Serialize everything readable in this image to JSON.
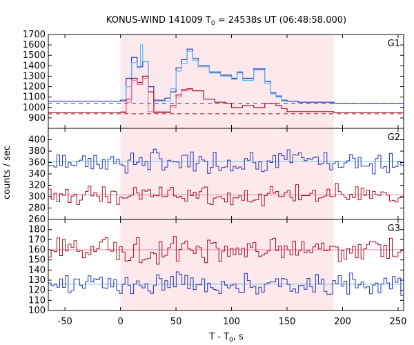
{
  "chart_data": {
    "type": "line",
    "title_main": "KONUS-WIND 141009 T",
    "title_sub": "0",
    "title_rest": " = 24538s UT (06:48:58.000)",
    "xlabel_main": "T - T",
    "xlabel_sub": "0",
    "xlabel_rest": ", s",
    "ylabel": "counts / sec",
    "xlim": [
      -65,
      255
    ],
    "x_ticks": [
      "-50",
      "0",
      "50",
      "100",
      "150",
      "200",
      "250"
    ],
    "x_tick_values": [
      -50,
      0,
      50,
      100,
      150,
      200,
      250
    ],
    "shaded_interval": [
      0,
      192
    ],
    "colors": {
      "dark_blue": "#2233bb",
      "light_blue": "#55c0f0",
      "dark_red": "#a01020",
      "pink": "#f070b0",
      "cyan_bg": "#6fc8d8",
      "pink_bg": "#f07ab0",
      "shade": "#fde8ec"
    },
    "panels": [
      {
        "label": "G1",
        "ylim": [
          800,
          1700
        ],
        "y_ticks": [
          "900",
          "1000",
          "1100",
          "1200",
          "1300",
          "1400",
          "1500",
          "1600",
          "1700"
        ],
        "y_tick_values": [
          900,
          1000,
          1100,
          1200,
          1300,
          1400,
          1500,
          1600,
          1700
        ],
        "background_levels": [
          1040,
          940
        ],
        "series": [
          {
            "color_key": "dark_blue",
            "step_x": [
              -65,
              0,
              5,
              10,
              15,
              20,
              25,
              30,
              40,
              45,
              50,
              55,
              60,
              65,
              70,
              80,
              90,
              100,
              105,
              110,
              120,
              130,
              135,
              140,
              145,
              150,
              160,
              192,
              255
            ],
            "step_y": [
              1060,
              1070,
              1280,
              1480,
              1390,
              1440,
              1200,
              1070,
              1090,
              1150,
              1380,
              1460,
              1560,
              1470,
              1400,
              1340,
              1310,
              1280,
              1340,
              1280,
              1370,
              1250,
              1140,
              1110,
              1070,
              1060,
              1050,
              1040,
              1040
            ]
          },
          {
            "color_key": "light_blue",
            "step_x": [
              0,
              5,
              10,
              15,
              18,
              20,
              25,
              30,
              45,
              50,
              55,
              60,
              65,
              70,
              80,
              90,
              100,
              105,
              110,
              120,
              130,
              135,
              140,
              145,
              150
            ],
            "step_y": [
              1060,
              1200,
              1430,
              1380,
              1600,
              1440,
              1150,
              1060,
              1180,
              1350,
              1420,
              1540,
              1450,
              1390,
              1330,
              1300,
              1270,
              1330,
              1260,
              1360,
              1230,
              1130,
              1100,
              1060,
              1060
            ]
          },
          {
            "color_key": "dark_red",
            "step_x": [
              -65,
              0,
              5,
              10,
              15,
              20,
              25,
              30,
              45,
              50,
              55,
              60,
              65,
              75,
              85,
              95,
              100,
              110,
              120,
              130,
              140,
              145,
              150,
              192,
              255
            ],
            "step_y": [
              950,
              950,
              1080,
              1280,
              1240,
              1300,
              1150,
              950,
              1020,
              1120,
              1170,
              1180,
              1160,
              1080,
              1050,
              1040,
              1000,
              1020,
              1000,
              1040,
              1020,
              990,
              960,
              950,
              950
            ]
          },
          {
            "color_key": "pink",
            "step_x": [
              0,
              5,
              10,
              15,
              20,
              25,
              45,
              50,
              55,
              60,
              65
            ],
            "step_y": [
              960,
              1050,
              1260,
              1220,
              1280,
              960,
              1000,
              1100,
              1160,
              1170,
              1140
            ]
          }
        ]
      },
      {
        "label": "G2",
        "ylim": [
          260,
          420
        ],
        "y_ticks": [
          "260",
          "280",
          "300",
          "320",
          "340",
          "360",
          "380",
          "400"
        ],
        "y_tick_values": [
          260,
          280,
          300,
          320,
          340,
          360,
          380,
          400
        ],
        "background_levels": [
          362,
          303
        ],
        "noise_series": [
          {
            "color_key": "dark_blue",
            "mean": 362,
            "amp": 24,
            "seed": 7
          },
          {
            "color_key": "dark_red",
            "mean": 303,
            "amp": 22,
            "seed": 13
          }
        ]
      },
      {
        "label": "G3",
        "ylim": [
          100,
          190
        ],
        "y_ticks": [
          "100",
          "110",
          "120",
          "130",
          "140",
          "150",
          "160",
          "170",
          "180"
        ],
        "y_tick_values": [
          100,
          110,
          120,
          130,
          140,
          150,
          160,
          170,
          180
        ],
        "background_levels": [
          160,
          126
        ],
        "noise_series": [
          {
            "color_key": "dark_red",
            "mean": 160,
            "amp": 15,
            "seed": 21
          },
          {
            "color_key": "dark_blue",
            "mean": 126,
            "amp": 13,
            "seed": 33
          }
        ]
      }
    ]
  }
}
